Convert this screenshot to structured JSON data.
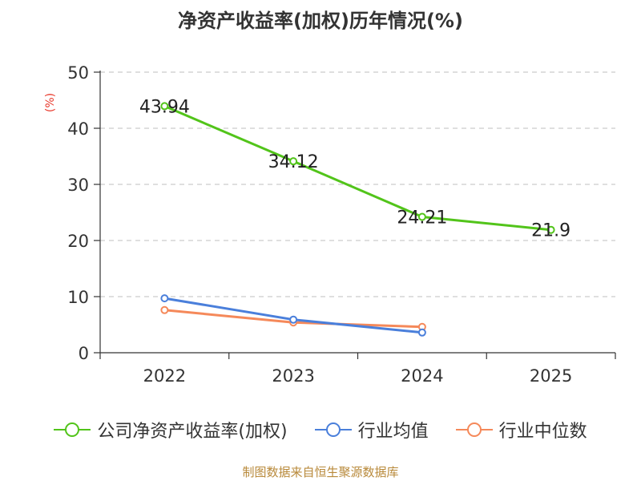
{
  "chart_data": {
    "type": "line",
    "title": "净资产收益率(加权)历年情况(%)",
    "ylabel": "(%)",
    "categories": [
      "2022",
      "2023",
      "2024",
      "2025"
    ],
    "ylim": [
      0,
      50
    ],
    "yticks": [
      0,
      10,
      20,
      30,
      40,
      50
    ],
    "grid": "horizontal-dashed",
    "legend_position": "bottom",
    "series": [
      {
        "name": "公司净资产收益率(加权)",
        "color": "#52c41a",
        "values": [
          43.94,
          34.12,
          24.21,
          21.9
        ],
        "labels": [
          "43.94",
          "34.12",
          "24.21",
          "21.9"
        ]
      },
      {
        "name": "行业均值",
        "color": "#4a7fdb",
        "values": [
          9.7,
          5.9,
          3.6,
          null
        ],
        "labels": []
      },
      {
        "name": "行业中位数",
        "color": "#f5895a",
        "values": [
          7.6,
          5.4,
          4.6,
          null
        ],
        "labels": []
      }
    ]
  },
  "source": "制图数据来自恒生聚源数据库"
}
